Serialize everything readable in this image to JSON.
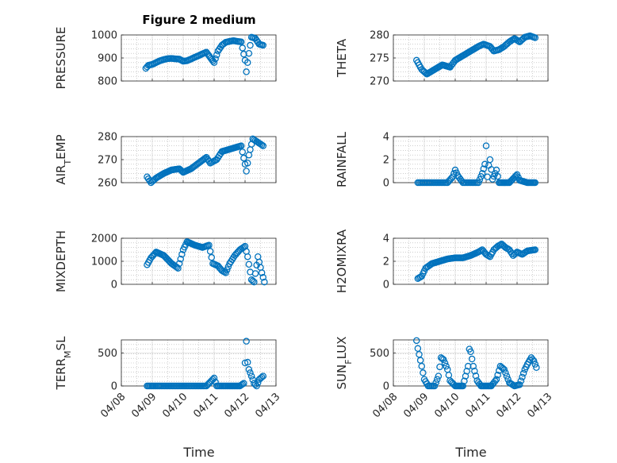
{
  "figure": {
    "title": "Figure 2 medium"
  },
  "chart_data": [
    {
      "type": "scatter",
      "ylabel": "PRESSURE",
      "ylim": [
        800,
        1000
      ],
      "yticks": [
        "800",
        "900",
        "1000"
      ],
      "x_range": [
        "04/08",
        "04/13"
      ],
      "grid": true,
      "points": [
        [
          "04/08 19:00",
          855
        ],
        [
          "04/08 21:00",
          868
        ],
        [
          "04/09 00:00",
          872
        ],
        [
          "04/09 03:00",
          880
        ],
        [
          "04/09 06:00",
          888
        ],
        [
          "04/09 09:00",
          893
        ],
        [
          "04/09 12:00",
          897
        ],
        [
          "04/09 15:00",
          898
        ],
        [
          "04/09 18:00",
          896
        ],
        [
          "04/09 21:00",
          895
        ],
        [
          "04/10 00:00",
          886
        ],
        [
          "04/10 03:00",
          888
        ],
        [
          "04/10 06:00",
          895
        ],
        [
          "04/10 09:00",
          903
        ],
        [
          "04/10 12:00",
          910
        ],
        [
          "04/10 15:00",
          918
        ],
        [
          "04/10 18:00",
          925
        ],
        [
          "04/11 00:00",
          880
        ],
        [
          "04/11 03:00",
          930
        ],
        [
          "04/11 06:00",
          955
        ],
        [
          "04/11 09:00",
          968
        ],
        [
          "04/11 12:00",
          972
        ],
        [
          "04/11 15:00",
          975
        ],
        [
          "04/11 18:00",
          972
        ],
        [
          "04/11 21:00",
          970
        ],
        [
          "04/12 00:00",
          890
        ],
        [
          "04/12 01:00",
          840
        ],
        [
          "04/12 03:00",
          920
        ],
        [
          "04/12 05:00",
          990
        ],
        [
          "04/12 08:00",
          985
        ],
        [
          "04/12 11:00",
          960
        ],
        [
          "04/12 14:00",
          955
        ]
      ]
    },
    {
      "type": "scatter",
      "ylabel": "THETA",
      "ylim": [
        270,
        280
      ],
      "yticks": [
        "270",
        "275",
        "280"
      ],
      "x_range": [
        "04/08",
        "04/13"
      ],
      "grid": true,
      "points": [
        [
          "04/08 18:00",
          274.5
        ],
        [
          "04/08 22:00",
          272.5
        ],
        [
          "04/09 02:00",
          271.5
        ],
        [
          "04/09 08:00",
          272.5
        ],
        [
          "04/09 14:00",
          273.5
        ],
        [
          "04/09 20:00",
          273.0
        ],
        [
          "04/10 00:00",
          274.5
        ],
        [
          "04/10 06:00",
          275.5
        ],
        [
          "04/10 12:00",
          276.5
        ],
        [
          "04/10 18:00",
          277.5
        ],
        [
          "04/10 22:00",
          278.0
        ],
        [
          "04/11 03:00",
          277.5
        ],
        [
          "04/11 06:00",
          276.5
        ],
        [
          "04/11 10:00",
          276.8
        ],
        [
          "04/11 14:00",
          277.5
        ],
        [
          "04/11 18:00",
          278.5
        ],
        [
          "04/11 22:00",
          279.2
        ],
        [
          "04/12 02:00",
          278.5
        ],
        [
          "04/12 06:00",
          279.5
        ],
        [
          "04/12 10:00",
          279.8
        ],
        [
          "04/12 14:00",
          279.4
        ]
      ]
    },
    {
      "type": "scatter",
      "ylabel": "AIR",
      "ylabel_sub": "T",
      "ylabel_rest": "EMP",
      "ylim": [
        260,
        280
      ],
      "yticks": [
        "260",
        "270",
        "280"
      ],
      "x_range": [
        "04/08",
        "04/13"
      ],
      "grid": true,
      "points": [
        [
          "04/08 20:00",
          262.5
        ],
        [
          "04/08 23:00",
          260.0
        ],
        [
          "04/09 03:00",
          262.0
        ],
        [
          "04/09 09:00",
          264.0
        ],
        [
          "04/09 15:00",
          265.5
        ],
        [
          "04/09 21:00",
          266.0
        ],
        [
          "04/10 00:00",
          264.5
        ],
        [
          "04/10 06:00",
          266.0
        ],
        [
          "04/10 12:00",
          268.5
        ],
        [
          "04/10 18:00",
          271.0
        ],
        [
          "04/10 21:00",
          268.5
        ],
        [
          "04/11 02:00",
          270.0
        ],
        [
          "04/11 06:00",
          273.5
        ],
        [
          "04/11 12:00",
          274.5
        ],
        [
          "04/11 18:00",
          275.5
        ],
        [
          "04/11 21:00",
          276.0
        ],
        [
          "04/12 00:00",
          268.0
        ],
        [
          "04/12 01:00",
          265.0
        ],
        [
          "04/12 03:00",
          272.0
        ],
        [
          "04/12 06:00",
          279.0
        ],
        [
          "04/12 10:00",
          277.5
        ],
        [
          "04/12 14:00",
          276.0
        ]
      ]
    },
    {
      "type": "scatter",
      "ylabel": "RAINFALL",
      "ylim": [
        0,
        4
      ],
      "yticks": [
        "0",
        "2",
        "4"
      ],
      "x_range": [
        "04/08",
        "04/13"
      ],
      "grid": true,
      "points": [
        [
          "04/08 19:00",
          0
        ],
        [
          "04/09 06:00",
          0
        ],
        [
          "04/09 18:00",
          0
        ],
        [
          "04/09 22:00",
          0.5
        ],
        [
          "04/10 00:00",
          1.1
        ],
        [
          "04/10 02:00",
          0.6
        ],
        [
          "04/10 06:00",
          0
        ],
        [
          "04/10 18:00",
          0
        ],
        [
          "04/10 21:00",
          0.8
        ],
        [
          "04/10 23:00",
          1.6
        ],
        [
          "04/11 00:00",
          3.2
        ],
        [
          "04/11 01:00",
          0.5
        ],
        [
          "04/11 02:00",
          1.5
        ],
        [
          "04/11 03:00",
          2.0
        ],
        [
          "04/11 05:00",
          0.3
        ],
        [
          "04/11 07:00",
          0.8
        ],
        [
          "04/11 08:00",
          1.1
        ],
        [
          "04/11 10:00",
          0
        ],
        [
          "04/11 18:00",
          0
        ],
        [
          "04/12 00:00",
          0.7
        ],
        [
          "04/12 02:00",
          0.2
        ],
        [
          "04/12 08:00",
          0
        ],
        [
          "04/12 14:00",
          0
        ]
      ]
    },
    {
      "type": "scatter",
      "ylabel": "MIXDEPTH",
      "ylim": [
        0,
        2000
      ],
      "yticks": [
        "0",
        "1000",
        "2000"
      ],
      "x_range": [
        "04/08",
        "04/13"
      ],
      "grid": true,
      "points": [
        [
          "04/08 20:00",
          850
        ],
        [
          "04/08 23:00",
          1150
        ],
        [
          "04/09 03:00",
          1400
        ],
        [
          "04/09 09:00",
          1250
        ],
        [
          "04/09 15:00",
          900
        ],
        [
          "04/09 20:00",
          700
        ],
        [
          "04/10 00:00",
          1500
        ],
        [
          "04/10 03:00",
          1850
        ],
        [
          "04/10 09:00",
          1700
        ],
        [
          "04/10 15:00",
          1600
        ],
        [
          "04/10 20:00",
          1700
        ],
        [
          "04/10 23:00",
          900
        ],
        [
          "04/11 03:00",
          800
        ],
        [
          "04/11 06:00",
          600
        ],
        [
          "04/11 09:00",
          500
        ],
        [
          "04/11 12:00",
          900
        ],
        [
          "04/11 16:00",
          1250
        ],
        [
          "04/11 20:00",
          1500
        ],
        [
          "04/12 00:00",
          1650
        ],
        [
          "04/12 02:00",
          1200
        ],
        [
          "04/12 05:00",
          200
        ],
        [
          "04/12 07:00",
          100
        ],
        [
          "04/12 10:00",
          1200
        ],
        [
          "04/12 13:00",
          500
        ],
        [
          "04/12 15:00",
          100
        ]
      ]
    },
    {
      "type": "scatter",
      "ylabel": "H2OMIXRA",
      "ylim": [
        0,
        4
      ],
      "yticks": [
        "0",
        "2",
        "4"
      ],
      "x_range": [
        "04/08",
        "04/13"
      ],
      "grid": true,
      "points": [
        [
          "04/08 19:00",
          0.5
        ],
        [
          "04/08 22:00",
          0.7
        ],
        [
          "04/09 01:00",
          1.4
        ],
        [
          "04/09 06:00",
          1.8
        ],
        [
          "04/09 12:00",
          2.0
        ],
        [
          "04/09 18:00",
          2.2
        ],
        [
          "04/10 00:00",
          2.3
        ],
        [
          "04/10 06:00",
          2.3
        ],
        [
          "04/10 12:00",
          2.5
        ],
        [
          "04/10 18:00",
          2.8
        ],
        [
          "04/10 21:00",
          3.0
        ],
        [
          "04/11 00:00",
          2.6
        ],
        [
          "04/11 03:00",
          2.4
        ],
        [
          "04/11 06:00",
          3.0
        ],
        [
          "04/11 09:00",
          3.3
        ],
        [
          "04/11 12:00",
          3.5
        ],
        [
          "04/11 15:00",
          3.2
        ],
        [
          "04/11 18:00",
          3.0
        ],
        [
          "04/11 21:00",
          2.5
        ],
        [
          "04/12 00:00",
          2.8
        ],
        [
          "04/12 04:00",
          2.6
        ],
        [
          "04/12 08:00",
          2.9
        ],
        [
          "04/12 14:00",
          3.0
        ]
      ]
    },
    {
      "type": "scatter",
      "ylabel": "TERR",
      "ylabel_sub": "M",
      "ylabel_rest": "SL",
      "ylim": [
        0,
        700
      ],
      "yticks": [
        "0",
        "500"
      ],
      "x_range": [
        "04/08",
        "04/13"
      ],
      "grid": true,
      "points": [
        [
          "04/08 20:00",
          0
        ],
        [
          "04/09 06:00",
          0
        ],
        [
          "04/09 18:00",
          0
        ],
        [
          "04/10 06:00",
          0
        ],
        [
          "04/10 18:00",
          0
        ],
        [
          "04/10 21:00",
          60
        ],
        [
          "04/11 00:00",
          120
        ],
        [
          "04/11 02:00",
          0
        ],
        [
          "04/11 12:00",
          0
        ],
        [
          "04/11 20:00",
          0
        ],
        [
          "04/11 23:00",
          40
        ],
        [
          "04/12 00:00",
          350
        ],
        [
          "04/12 01:00",
          680
        ],
        [
          "04/12 02:00",
          360
        ],
        [
          "04/12 03:00",
          250
        ],
        [
          "04/12 05:00",
          150
        ],
        [
          "04/12 07:00",
          40
        ],
        [
          "04/12 09:00",
          0
        ],
        [
          "04/12 11:00",
          100
        ],
        [
          "04/12 14:00",
          150
        ]
      ]
    },
    {
      "type": "scatter",
      "ylabel": "SUN",
      "ylabel_sub": "F",
      "ylabel_rest": "LUX",
      "ylim": [
        0,
        700
      ],
      "yticks": [
        "0",
        "500"
      ],
      "x_range": [
        "04/08",
        "04/13"
      ],
      "grid": true,
      "points": [
        [
          "04/08 18:00",
          690
        ],
        [
          "04/08 19:00",
          570
        ],
        [
          "04/08 20:00",
          480
        ],
        [
          "04/08 22:00",
          300
        ],
        [
          "04/09 00:00",
          100
        ],
        [
          "04/09 03:00",
          0
        ],
        [
          "04/09 08:00",
          0
        ],
        [
          "04/09 11:00",
          150
        ],
        [
          "04/09 13:00",
          430
        ],
        [
          "04/09 15:00",
          400
        ],
        [
          "04/09 18:00",
          250
        ],
        [
          "04/09 20:00",
          80
        ],
        [
          "04/10 00:00",
          0
        ],
        [
          "04/10 06:00",
          0
        ],
        [
          "04/10 10:00",
          300
        ],
        [
          "04/10 11:00",
          560
        ],
        [
          "04/10 12:00",
          520
        ],
        [
          "04/10 14:00",
          300
        ],
        [
          "04/10 17:00",
          80
        ],
        [
          "04/10 20:00",
          0
        ],
        [
          "04/11 04:00",
          0
        ],
        [
          "04/11 08:00",
          100
        ],
        [
          "04/11 11:00",
          300
        ],
        [
          "04/11 14:00",
          250
        ],
        [
          "04/11 18:00",
          50
        ],
        [
          "04/11 22:00",
          0
        ],
        [
          "04/12 02:00",
          20
        ],
        [
          "04/12 06:00",
          250
        ],
        [
          "04/12 08:00",
          330
        ],
        [
          "04/12 11:00",
          430
        ],
        [
          "04/12 13:00",
          380
        ],
        [
          "04/12 15:00",
          280
        ]
      ]
    }
  ],
  "xaxis": {
    "ticks": [
      "04/08",
      "04/09",
      "04/10",
      "04/11",
      "04/12",
      "04/13"
    ],
    "label": "Time"
  }
}
